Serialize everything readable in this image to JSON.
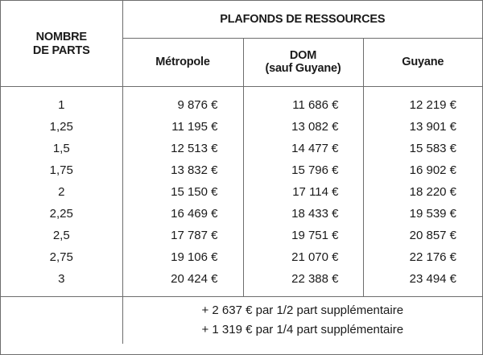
{
  "header": {
    "parts_line1": "NOMBRE",
    "parts_line2": "DE PARTS",
    "main": "PLAFONDS DE RESSOURCES",
    "metropole": "Métropole",
    "dom_line1": "DOM",
    "dom_line2": "(sauf Guyane)",
    "guyane": "Guyane"
  },
  "rows": [
    {
      "parts": "1",
      "metropole": "9 876 €",
      "dom": "11 686 €",
      "guyane": "12 219 €"
    },
    {
      "parts": "1,25",
      "metropole": "11 195 €",
      "dom": "13 082 €",
      "guyane": "13 901 €"
    },
    {
      "parts": "1,5",
      "metropole": "12 513 €",
      "dom": "14 477 €",
      "guyane": "15 583 €"
    },
    {
      "parts": "1,75",
      "metropole": "13 832 €",
      "dom": "15 796 €",
      "guyane": "16 902 €"
    },
    {
      "parts": "2",
      "metropole": "15 150 €",
      "dom": "17 114 €",
      "guyane": "18 220 €"
    },
    {
      "parts": "2,25",
      "metropole": "16 469 €",
      "dom": "18 433 €",
      "guyane": "19 539 €"
    },
    {
      "parts": "2,5",
      "metropole": "17 787 €",
      "dom": "19 751 €",
      "guyane": "20 857 €"
    },
    {
      "parts": "2,75",
      "metropole": "19 106 €",
      "dom": "21 070 €",
      "guyane": "22 176 €"
    },
    {
      "parts": "3",
      "metropole": "20 424 €",
      "dom": "22 388 €",
      "guyane": "23 494 €"
    }
  ],
  "footer": {
    "line1": "+ 2 637 € par 1/2 part supplémentaire",
    "line2": "+ 1 319 € par 1/4 part supplémentaire"
  }
}
